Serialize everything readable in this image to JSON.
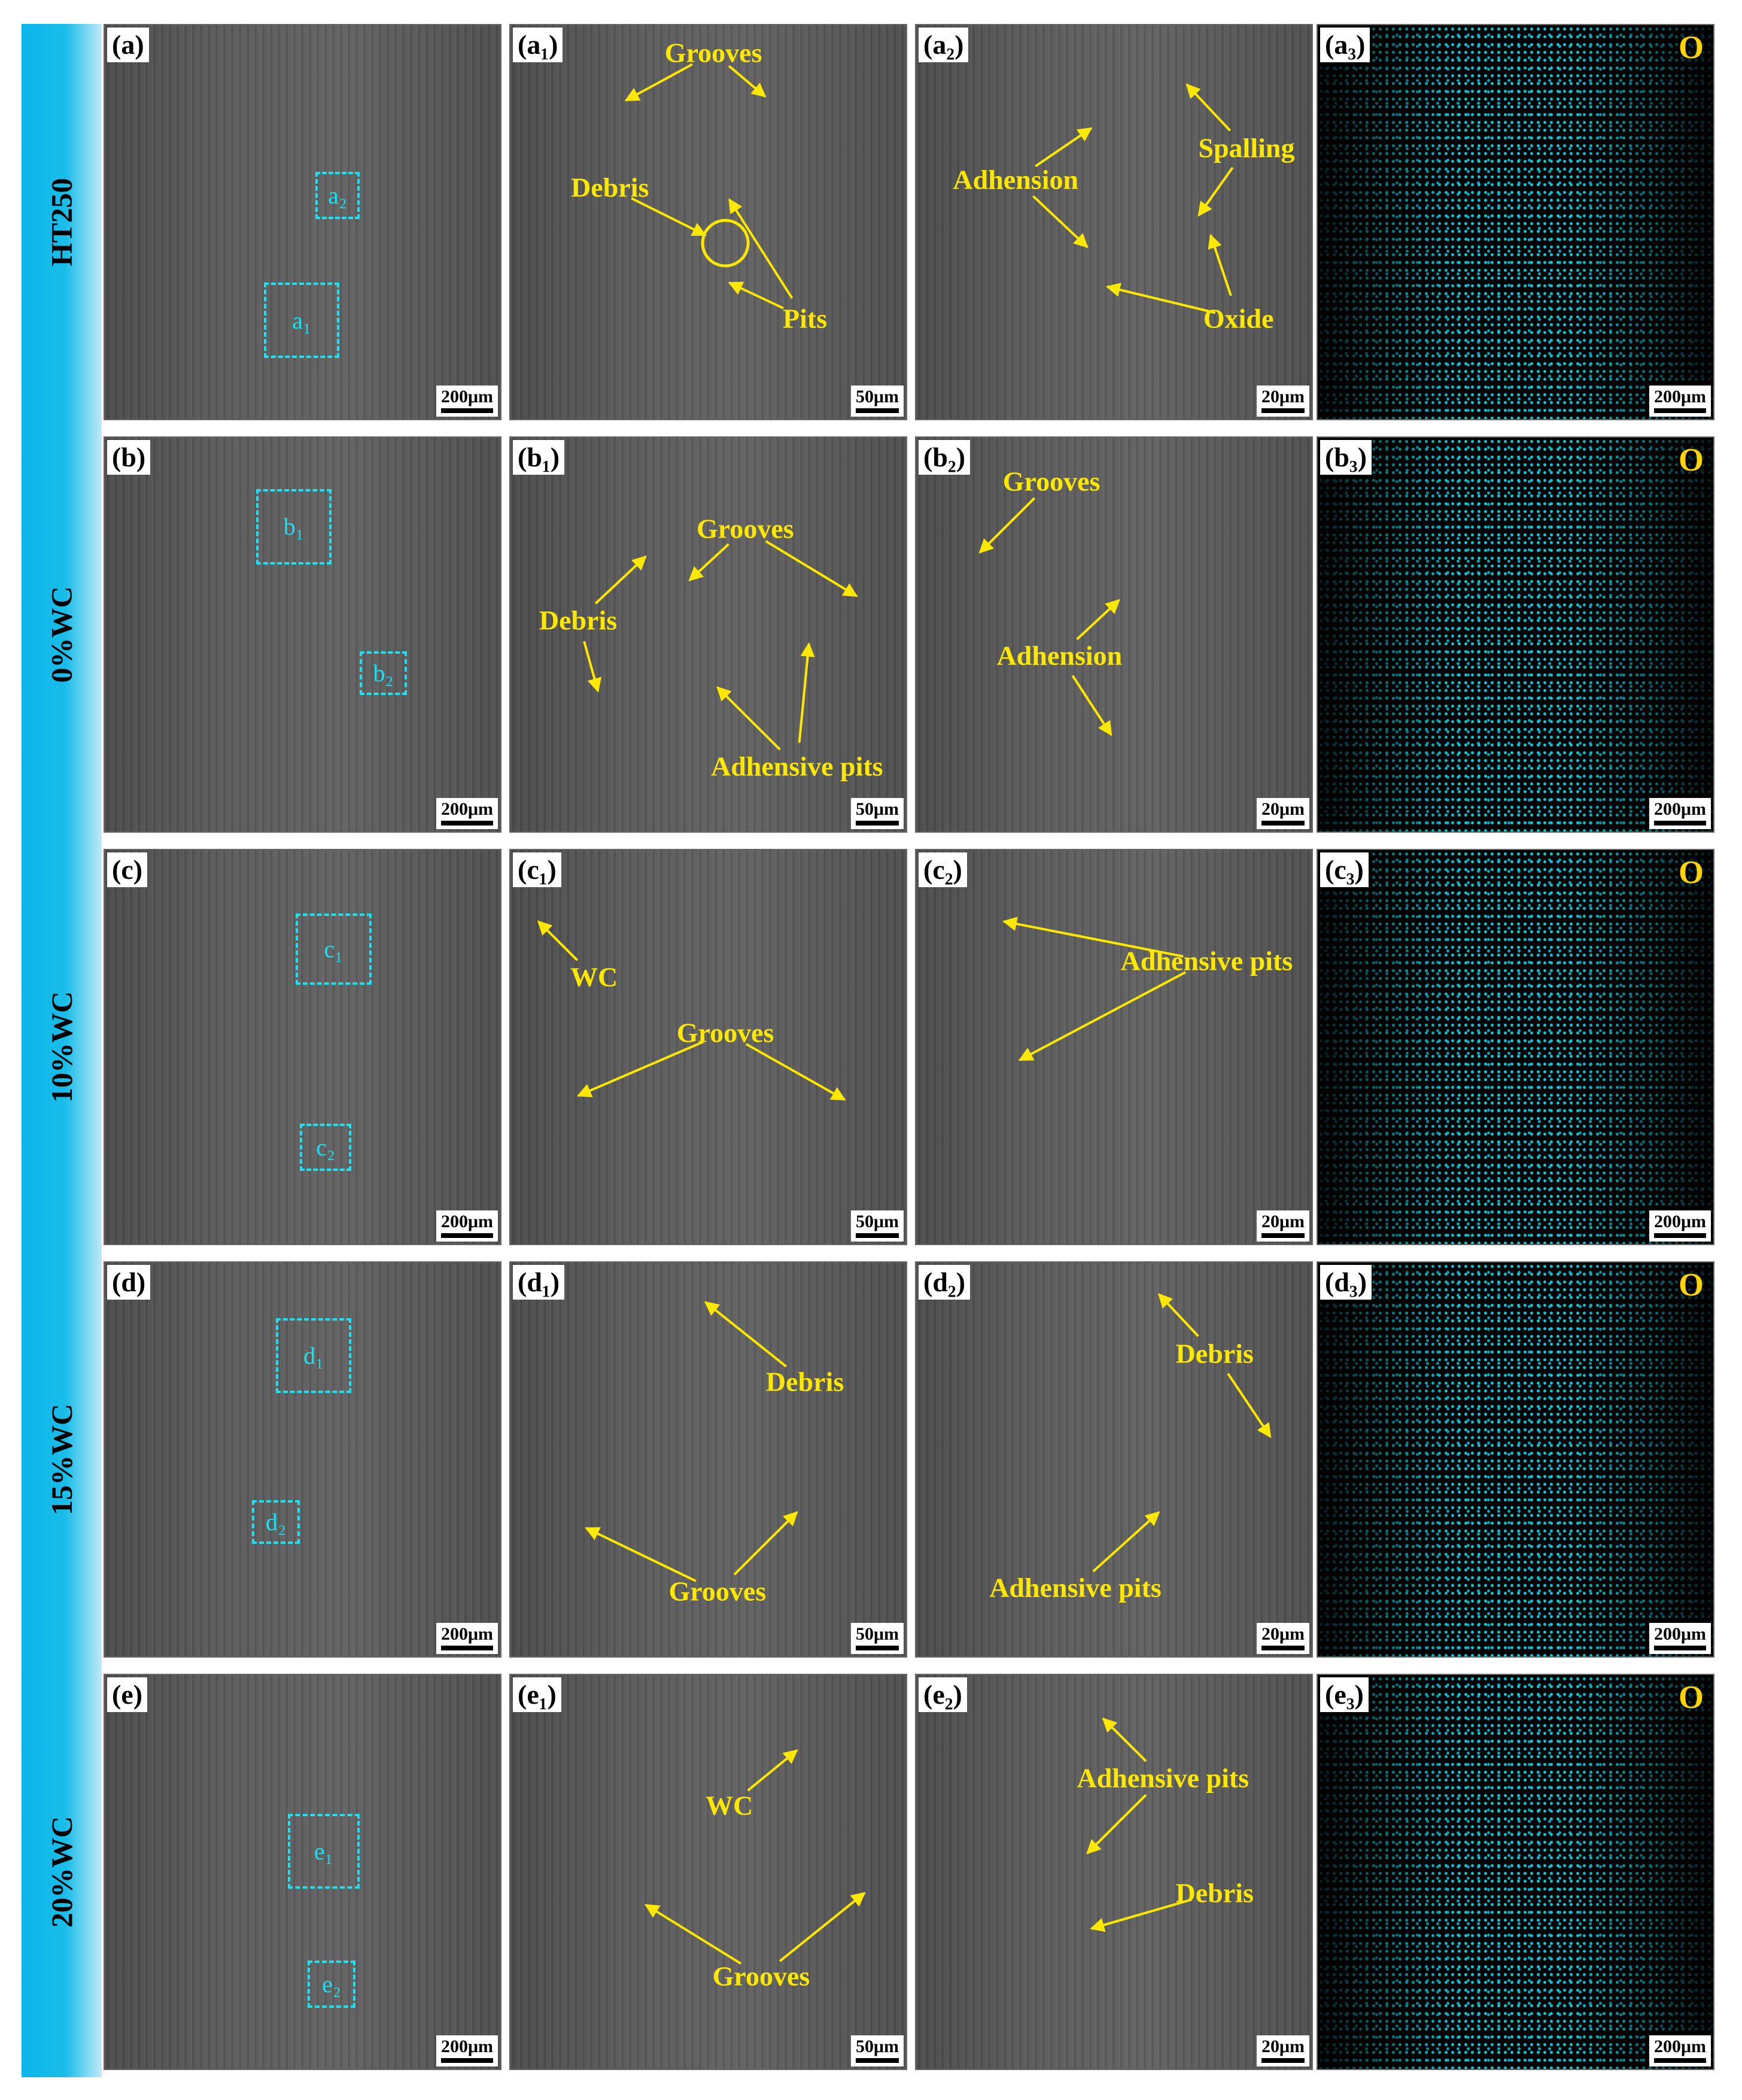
{
  "rows": [
    {
      "label": "HT250",
      "panels": [
        {
          "label": "(a)",
          "scale_bar": "200μm",
          "boxes": [
            "a₂",
            "a₁"
          ]
        },
        {
          "label": "(a₁)",
          "scale_bar": "50μm",
          "annotations": [
            "Grooves",
            "Debris",
            "Pits"
          ]
        },
        {
          "label": "(a₂)",
          "scale_bar": "20μm",
          "annotations": [
            "Adhension",
            "Spalling",
            "Oxide"
          ]
        },
        {
          "label": "(a₃)",
          "scale_bar": "200μm",
          "element": "O"
        }
      ]
    },
    {
      "label": "0%WC",
      "panels": [
        {
          "label": "(b)",
          "scale_bar": "200μm",
          "boxes": [
            "b₁",
            "b₂"
          ]
        },
        {
          "label": "(b₁)",
          "scale_bar": "50μm",
          "annotations": [
            "Grooves",
            "Debris",
            "Adhensive pits"
          ]
        },
        {
          "label": "(b₂)",
          "scale_bar": "20μm",
          "annotations": [
            "Grooves",
            "Adhension"
          ]
        },
        {
          "label": "(b₃)",
          "scale_bar": "200μm",
          "element": "O"
        }
      ]
    },
    {
      "label": "10%WC",
      "panels": [
        {
          "label": "(c)",
          "scale_bar": "200μm",
          "boxes": [
            "c₁",
            "c₂"
          ]
        },
        {
          "label": "(c₁)",
          "scale_bar": "50μm",
          "annotations": [
            "WC",
            "Grooves"
          ]
        },
        {
          "label": "(c₂)",
          "scale_bar": "20μm",
          "annotations": [
            "Adhensive pits"
          ]
        },
        {
          "label": "(c₃)",
          "scale_bar": "200μm",
          "element": "O"
        }
      ]
    },
    {
      "label": "15%WC",
      "panels": [
        {
          "label": "(d)",
          "scale_bar": "200μm",
          "boxes": [
            "d₁",
            "d₂"
          ]
        },
        {
          "label": "(d₁)",
          "scale_bar": "50μm",
          "annotations": [
            "Debris",
            "Grooves"
          ]
        },
        {
          "label": "(d₂)",
          "scale_bar": "20μm",
          "annotations": [
            "Debris",
            "Adhensive pits"
          ]
        },
        {
          "label": "(d₃)",
          "scale_bar": "200μm",
          "element": "O"
        }
      ]
    },
    {
      "label": "20%WC",
      "panels": [
        {
          "label": "(e)",
          "scale_bar": "200μm",
          "boxes": [
            "e₁",
            "e₂"
          ]
        },
        {
          "label": "(e₁)",
          "scale_bar": "50μm",
          "annotations": [
            "WC",
            "Grooves"
          ]
        },
        {
          "label": "(e₂)",
          "scale_bar": "20μm",
          "annotations": [
            "Adhensive pits",
            "Debris"
          ]
        },
        {
          "label": "(e₃)",
          "scale_bar": "200μm",
          "element": "O"
        }
      ]
    }
  ]
}
